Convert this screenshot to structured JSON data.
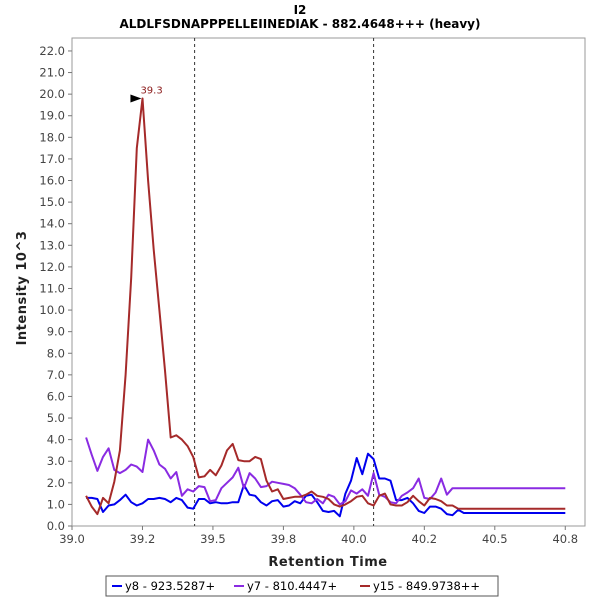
{
  "chart_data": {
    "type": "line",
    "title": "I2",
    "subtitle": "ALDLFSDNAPPPELLEIINEDIAK - 882.4648+++ (heavy)",
    "xlabel": "Retention Time",
    "ylabel": "Intensity 10^3",
    "xlim": [
      39.0,
      40.82
    ],
    "ylim": [
      0,
      22.6
    ],
    "x_ticks": [
      "39.0",
      "39.2",
      "39.5",
      "39.8",
      "40.0",
      "40.2",
      "40.5",
      "40.8"
    ],
    "x_tick_values": [
      39.0,
      39.25,
      39.5,
      39.75,
      40.0,
      40.25,
      40.5,
      40.75
    ],
    "y_ticks": [
      "0.0",
      "1.0",
      "2.0",
      "3.0",
      "4.0",
      "5.0",
      "6.0",
      "7.0",
      "8.0",
      "9.0",
      "10.0",
      "11.0",
      "12.0",
      "13.0",
      "14.0",
      "15.0",
      "16.0",
      "17.0",
      "18.0",
      "19.0",
      "20.0",
      "21.0",
      "22.0"
    ],
    "grid": false,
    "legend_position": "bottom",
    "boundaries": [
      39.435,
      40.07
    ],
    "peak_annotation": {
      "label": "39.3",
      "x": 39.257,
      "y": 19.8,
      "color": "#8b1a1a"
    },
    "x": [
      39.05,
      39.07,
      39.09,
      39.11,
      39.13,
      39.15,
      39.17,
      39.19,
      39.21,
      39.23,
      39.25,
      39.27,
      39.29,
      39.31,
      39.33,
      39.35,
      39.37,
      39.39,
      39.41,
      39.43,
      39.45,
      39.47,
      39.49,
      39.51,
      39.53,
      39.55,
      39.57,
      39.59,
      39.61,
      39.63,
      39.65,
      39.67,
      39.69,
      39.71,
      39.73,
      39.75,
      39.77,
      39.79,
      39.81,
      39.83,
      39.85,
      39.87,
      39.89,
      39.91,
      39.93,
      39.95,
      39.97,
      39.99,
      40.01,
      40.03,
      40.05,
      40.07,
      40.09,
      40.11,
      40.13,
      40.15,
      40.17,
      40.19,
      40.21,
      40.23,
      40.25,
      40.27,
      40.29,
      40.31,
      40.33,
      40.35,
      40.37,
      40.39,
      40.41,
      40.43,
      40.45,
      40.47,
      40.49,
      40.51,
      40.53,
      40.55,
      40.57,
      40.59,
      40.61,
      40.63,
      40.65,
      40.67,
      40.69,
      40.71,
      40.73,
      40.75
    ],
    "series": [
      {
        "name": "y8 - 923.5287+",
        "color": "#0000ee",
        "values": [
          1.3,
          1.3,
          1.25,
          0.65,
          0.95,
          1.0,
          1.2,
          1.45,
          1.1,
          0.95,
          1.05,
          1.25,
          1.25,
          1.3,
          1.25,
          1.1,
          1.3,
          1.2,
          0.85,
          0.8,
          1.25,
          1.25,
          1.05,
          1.1,
          1.05,
          1.05,
          1.1,
          1.1,
          1.9,
          1.45,
          1.4,
          1.1,
          0.95,
          1.15,
          1.2,
          0.9,
          0.95,
          1.15,
          1.05,
          1.4,
          1.45,
          1.1,
          0.7,
          0.65,
          0.7,
          0.45,
          1.5,
          2.1,
          3.15,
          2.4,
          3.35,
          3.1,
          2.2,
          2.2,
          2.1,
          1.2,
          1.2,
          1.3,
          1.05,
          0.7,
          0.6,
          0.9,
          0.9,
          0.8,
          0.55,
          0.5,
          0.75,
          0.6,
          0.6,
          0.6,
          0.6,
          0.6,
          0.6,
          0.6,
          0.6,
          0.6,
          0.6,
          0.6,
          0.6,
          0.6,
          0.6,
          0.6,
          0.6,
          0.6,
          0.6,
          0.6
        ]
      },
      {
        "name": "y7 - 810.4447+",
        "color": "#8a2be2",
        "values": [
          4.1,
          3.3,
          2.55,
          3.2,
          3.6,
          2.6,
          2.45,
          2.6,
          2.85,
          2.75,
          2.5,
          4.0,
          3.5,
          2.85,
          2.65,
          2.2,
          2.5,
          1.4,
          1.7,
          1.6,
          1.85,
          1.8,
          1.15,
          1.2,
          1.75,
          2.0,
          2.25,
          2.7,
          1.75,
          2.45,
          2.2,
          1.8,
          1.85,
          2.05,
          2.0,
          1.95,
          1.9,
          1.75,
          1.45,
          1.1,
          1.05,
          1.25,
          1.05,
          1.45,
          1.35,
          1.0,
          1.15,
          1.65,
          1.5,
          1.7,
          1.4,
          2.45,
          1.45,
          1.35,
          1.1,
          1.05,
          1.4,
          1.55,
          1.75,
          2.2,
          1.3,
          1.25,
          1.55,
          2.2,
          1.45,
          1.75,
          1.75,
          1.75,
          1.75,
          1.75,
          1.75,
          1.75,
          1.75,
          1.75,
          1.75,
          1.75,
          1.75,
          1.75,
          1.75,
          1.75,
          1.75,
          1.75,
          1.75,
          1.75,
          1.75,
          1.75
        ]
      },
      {
        "name": "y15 - 849.9738++",
        "color": "#a52a2a",
        "values": [
          1.4,
          0.9,
          0.55,
          1.3,
          1.05,
          2.05,
          3.5,
          7.0,
          11.5,
          17.5,
          19.8,
          16.0,
          12.8,
          10.0,
          7.2,
          4.1,
          4.2,
          4.0,
          3.7,
          3.2,
          2.25,
          2.3,
          2.6,
          2.35,
          2.8,
          3.5,
          3.8,
          3.05,
          3.0,
          3.0,
          3.2,
          3.1,
          2.1,
          1.6,
          1.7,
          1.25,
          1.3,
          1.35,
          1.35,
          1.45,
          1.6,
          1.4,
          1.35,
          1.25,
          1.0,
          0.9,
          1.0,
          1.15,
          1.35,
          1.4,
          1.05,
          0.95,
          1.4,
          1.5,
          1.0,
          0.95,
          0.95,
          1.1,
          1.4,
          1.15,
          0.95,
          1.3,
          1.25,
          1.15,
          0.95,
          0.95,
          0.8,
          0.8,
          0.8,
          0.8,
          0.8,
          0.8,
          0.8,
          0.8,
          0.8,
          0.8,
          0.8,
          0.8,
          0.8,
          0.8,
          0.8,
          0.8,
          0.8,
          0.8,
          0.8,
          0.8
        ]
      }
    ]
  }
}
